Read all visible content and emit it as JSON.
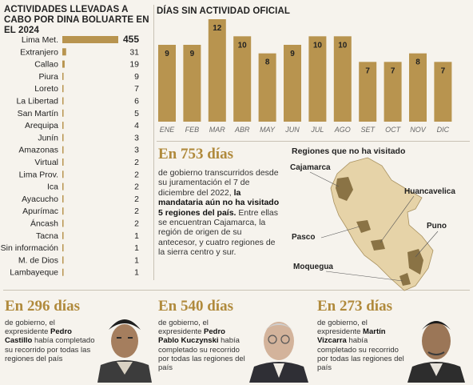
{
  "left_title": "ACTIVIDADES LLEVADAS A CABO POR DINA BOLUARTE EN EL 2024",
  "right_title": "DÍAS SIN ACTIVIDAD OFICIAL",
  "colors": {
    "bar": "#b8944f",
    "accent": "#b08a3c",
    "map_fill": "#e6d3a8",
    "map_highlight": "#8a7345"
  },
  "chart_data": [
    {
      "type": "bar",
      "orientation": "horizontal",
      "title": "ACTIVIDADES LLEVADAS A CABO POR DINA BOLUARTE EN EL 2024",
      "categories": [
        "Lima Met.",
        "Extranjero",
        "Callao",
        "Piura",
        "Loreto",
        "La Libertad",
        "San Martín",
        "Arequipa",
        "Junín",
        "Amazonas",
        "Virtual",
        "Lima Prov.",
        "Ica",
        "Ayacucho",
        "Apurímac",
        "Áncash",
        "Tacna",
        "Sin información",
        "M. de Dios",
        "Lambayeque"
      ],
      "values": [
        455,
        31,
        19,
        9,
        7,
        6,
        5,
        4,
        3,
        3,
        2,
        2,
        2,
        2,
        2,
        2,
        1,
        1,
        1,
        1
      ]
    },
    {
      "type": "bar",
      "orientation": "vertical",
      "title": "DÍAS SIN ACTIVIDAD OFICIAL",
      "categories": [
        "ENE",
        "FEB",
        "MAR",
        "ABR",
        "MAY",
        "JUN",
        "JUL",
        "AGO",
        "SET",
        "OCT",
        "NOV",
        "DIC"
      ],
      "values": [
        9,
        9,
        12,
        10,
        8,
        9,
        10,
        10,
        7,
        7,
        8,
        7
      ],
      "ylim": [
        0,
        12
      ]
    }
  ],
  "boluarte": {
    "heading": "En 753 días",
    "text_1": "de gobierno transcurridos desde su juramentación el 7 de diciembre del 2022, ",
    "text_bold": "la mandataria aún no ha visitado 5 regiones del país.",
    "text_2": " Entre ellas se encuentran Cajamarca, la región de origen de su antecesor, y cuatro regiones de la sierra centro y sur."
  },
  "map": {
    "title": "Regiones que no ha visitado",
    "labels": [
      "Cajamarca",
      "Huancavelica",
      "Pasco",
      "Puno",
      "Moquegua"
    ]
  },
  "castillo": {
    "heading": "En 296 días",
    "text_1": "de gobierno, el expresidente ",
    "name": "Pedro Castillo",
    "text_2": " había completado su recorrido por todas las regiones del país"
  },
  "kuczynski": {
    "heading": "En 540 días",
    "text_1": "de gobierno, el expresidente ",
    "name": "Pedro Pablo Kuczynski",
    "text_2": " había completado su recorrido por todas las regiones del país"
  },
  "vizcarra": {
    "heading": "En 273 días",
    "text_1": "de gobierno, el expresidente ",
    "name": "Martín Vizcarra",
    "text_2": " había completado su recorrido por todas las regiones del país"
  }
}
